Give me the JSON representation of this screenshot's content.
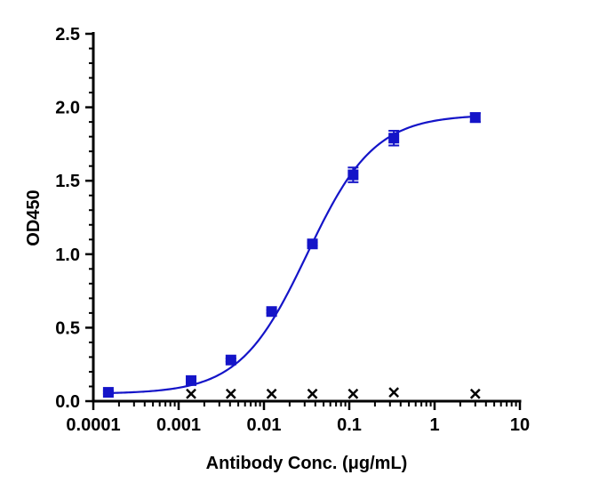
{
  "chart_data": {
    "type": "scatter",
    "title": "",
    "xlabel": "Antibody Conc. (μg/mL)",
    "ylabel": "OD450",
    "x_scale": "log",
    "xlim": [
      0.0001,
      10
    ],
    "ylim": [
      0,
      2.5
    ],
    "x_tick_labels": [
      "0.0001",
      "0.001",
      "0.01",
      "0.1",
      "1",
      "10"
    ],
    "y_tick_labels": [
      "0.0",
      "0.5",
      "1.0",
      "1.5",
      "2.0",
      "2.5"
    ],
    "grid": false,
    "legend": "none",
    "series": [
      {
        "marker": "square",
        "color": "#1414c8",
        "x": [
          0.00015,
          0.0014,
          0.0041,
          0.0123,
          0.037,
          0.111,
          0.333,
          3.0
        ],
        "y": [
          0.06,
          0.14,
          0.28,
          0.61,
          1.07,
          1.54,
          1.79,
          1.93
        ],
        "error": [
          0.01,
          0.01,
          0.01,
          0.01,
          0.01,
          0.05,
          0.05,
          0.03
        ],
        "fit": {
          "type": "4PL",
          "bottom": 0.05,
          "top": 1.95,
          "ec50": 0.032,
          "hill": 1.1
        }
      },
      {
        "marker": "x",
        "color": "#000000",
        "x": [
          0.0014,
          0.0041,
          0.0123,
          0.037,
          0.111,
          0.333,
          3.0
        ],
        "y": [
          0.05,
          0.05,
          0.05,
          0.05,
          0.05,
          0.06,
          0.05
        ]
      }
    ]
  }
}
